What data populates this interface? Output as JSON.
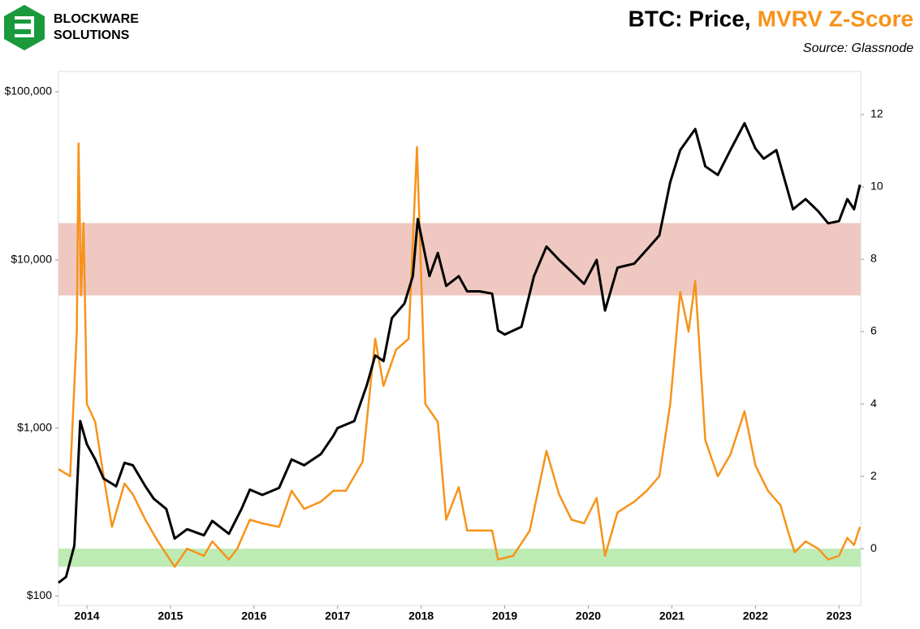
{
  "logo": {
    "line1": "BLOCKWARE",
    "line2": "SOLUTIONS"
  },
  "chart_data": {
    "type": "line",
    "title": "BTC: Price,",
    "title_highlight": "MVRV Z-Score",
    "title_highlight_color": "#f7931a",
    "subtitle": "Source: Glassnode",
    "xlim": [
      2013.66,
      2023.26
    ],
    "xticks": [
      2014,
      2015,
      2016,
      2017,
      2018,
      2019,
      2020,
      2021,
      2022,
      2023
    ],
    "ylim": [
      88,
      132000
    ],
    "log_scale": true,
    "yticks": [
      {
        "value": 100,
        "label": "$100"
      },
      {
        "value": 1000,
        "label": "$1,000"
      },
      {
        "value": 10000,
        "label": "$10,000"
      },
      {
        "value": 100000,
        "label": "$100,000"
      }
    ],
    "y2lim": [
      -1.57,
      13.19
    ],
    "y2ticks": [
      0,
      2,
      4,
      6,
      8,
      10,
      12
    ],
    "bands": [
      {
        "from": 7,
        "to": 9,
        "color": "#efc9c1",
        "axis": "y2"
      },
      {
        "from": -0.5,
        "to": 0,
        "color": "#bdebb3",
        "axis": "y2"
      }
    ],
    "series": [
      {
        "color": "#f7931a",
        "axis": "y2",
        "x": [
          2013.66,
          2013.8,
          2013.88,
          2013.9,
          2013.93,
          2013.96,
          2014.0,
          2014.1,
          2014.2,
          2014.3,
          2014.45,
          2014.55,
          2014.7,
          2014.85,
          2015.05,
          2015.2,
          2015.4,
          2015.5,
          2015.7,
          2015.8,
          2015.95,
          2016.1,
          2016.3,
          2016.45,
          2016.6,
          2016.8,
          2016.95,
          2017.1,
          2017.3,
          2017.45,
          2017.55,
          2017.7,
          2017.85,
          2017.95,
          2018.05,
          2018.2,
          2018.3,
          2018.45,
          2018.55,
          2018.7,
          2018.85,
          2018.92,
          2019.1,
          2019.3,
          2019.5,
          2019.65,
          2019.8,
          2019.95,
          2020.1,
          2020.2,
          2020.35,
          2020.55,
          2020.7,
          2020.85,
          2020.98,
          2021.1,
          2021.2,
          2021.28,
          2021.4,
          2021.55,
          2021.7,
          2021.87,
          2022.0,
          2022.15,
          2022.3,
          2022.4,
          2022.47,
          2022.6,
          2022.75,
          2022.87,
          2023.0,
          2023.1,
          2023.18,
          2023.25
        ],
        "values": [
          2.2,
          2.0,
          6,
          11.2,
          7,
          9,
          4,
          3.5,
          2,
          0.6,
          1.8,
          1.5,
          0.8,
          0.2,
          -0.5,
          0,
          -0.2,
          0.2,
          -0.3,
          0,
          0.8,
          0.7,
          0.6,
          1.6,
          1.1,
          1.3,
          1.6,
          1.6,
          2.4,
          5.8,
          4.5,
          5.5,
          5.8,
          11.1,
          4.0,
          3.5,
          0.8,
          1.7,
          0.5,
          0.5,
          0.5,
          -0.3,
          -0.2,
          0.5,
          2.7,
          1.5,
          0.8,
          0.7,
          1.4,
          -0.2,
          1.0,
          1.3,
          1.6,
          2.0,
          4.0,
          7.1,
          6.0,
          7.4,
          3.0,
          2.0,
          2.6,
          3.8,
          2.3,
          1.6,
          1.2,
          0.4,
          -0.1,
          0.2,
          0.0,
          -0.3,
          -0.2,
          0.3,
          0.1,
          0.6
        ]
      },
      {
        "color": "#000000",
        "x": [
          2013.66,
          2013.75,
          2013.85,
          2013.92,
          2014.0,
          2014.1,
          2014.2,
          2014.35,
          2014.45,
          2014.55,
          2014.7,
          2014.8,
          2014.95,
          2015.05,
          2015.2,
          2015.4,
          2015.5,
          2015.7,
          2015.85,
          2015.95,
          2016.1,
          2016.3,
          2016.45,
          2016.6,
          2016.8,
          2016.95,
          2017.0,
          2017.2,
          2017.35,
          2017.45,
          2017.55,
          2017.65,
          2017.8,
          2017.9,
          2017.96,
          2018.1,
          2018.2,
          2018.3,
          2018.45,
          2018.55,
          2018.7,
          2018.85,
          2018.92,
          2019.0,
          2019.2,
          2019.35,
          2019.5,
          2019.65,
          2019.8,
          2019.95,
          2020.1,
          2020.2,
          2020.35,
          2020.55,
          2020.7,
          2020.85,
          2020.98,
          2021.1,
          2021.28,
          2021.4,
          2021.55,
          2021.7,
          2021.87,
          2022.0,
          2022.1,
          2022.25,
          2022.35,
          2022.45,
          2022.6,
          2022.75,
          2022.87,
          2023.0,
          2023.1,
          2023.18,
          2023.25
        ],
        "values": [
          120,
          130,
          200,
          1100,
          800,
          650,
          500,
          450,
          620,
          600,
          450,
          380,
          330,
          220,
          250,
          230,
          280,
          235,
          330,
          430,
          400,
          440,
          650,
          600,
          700,
          900,
          1000,
          1100,
          1800,
          2700,
          2500,
          4500,
          5500,
          8000,
          17500,
          8000,
          11000,
          7000,
          8000,
          6500,
          6500,
          6300,
          3800,
          3600,
          4000,
          8000,
          12000,
          10000,
          8500,
          7200,
          10000,
          5000,
          9000,
          9500,
          11500,
          14000,
          29000,
          45000,
          60000,
          36000,
          32000,
          45000,
          65000,
          46000,
          40000,
          45000,
          30000,
          20000,
          23000,
          19500,
          16500,
          17000,
          23000,
          20000,
          28000
        ]
      }
    ]
  }
}
